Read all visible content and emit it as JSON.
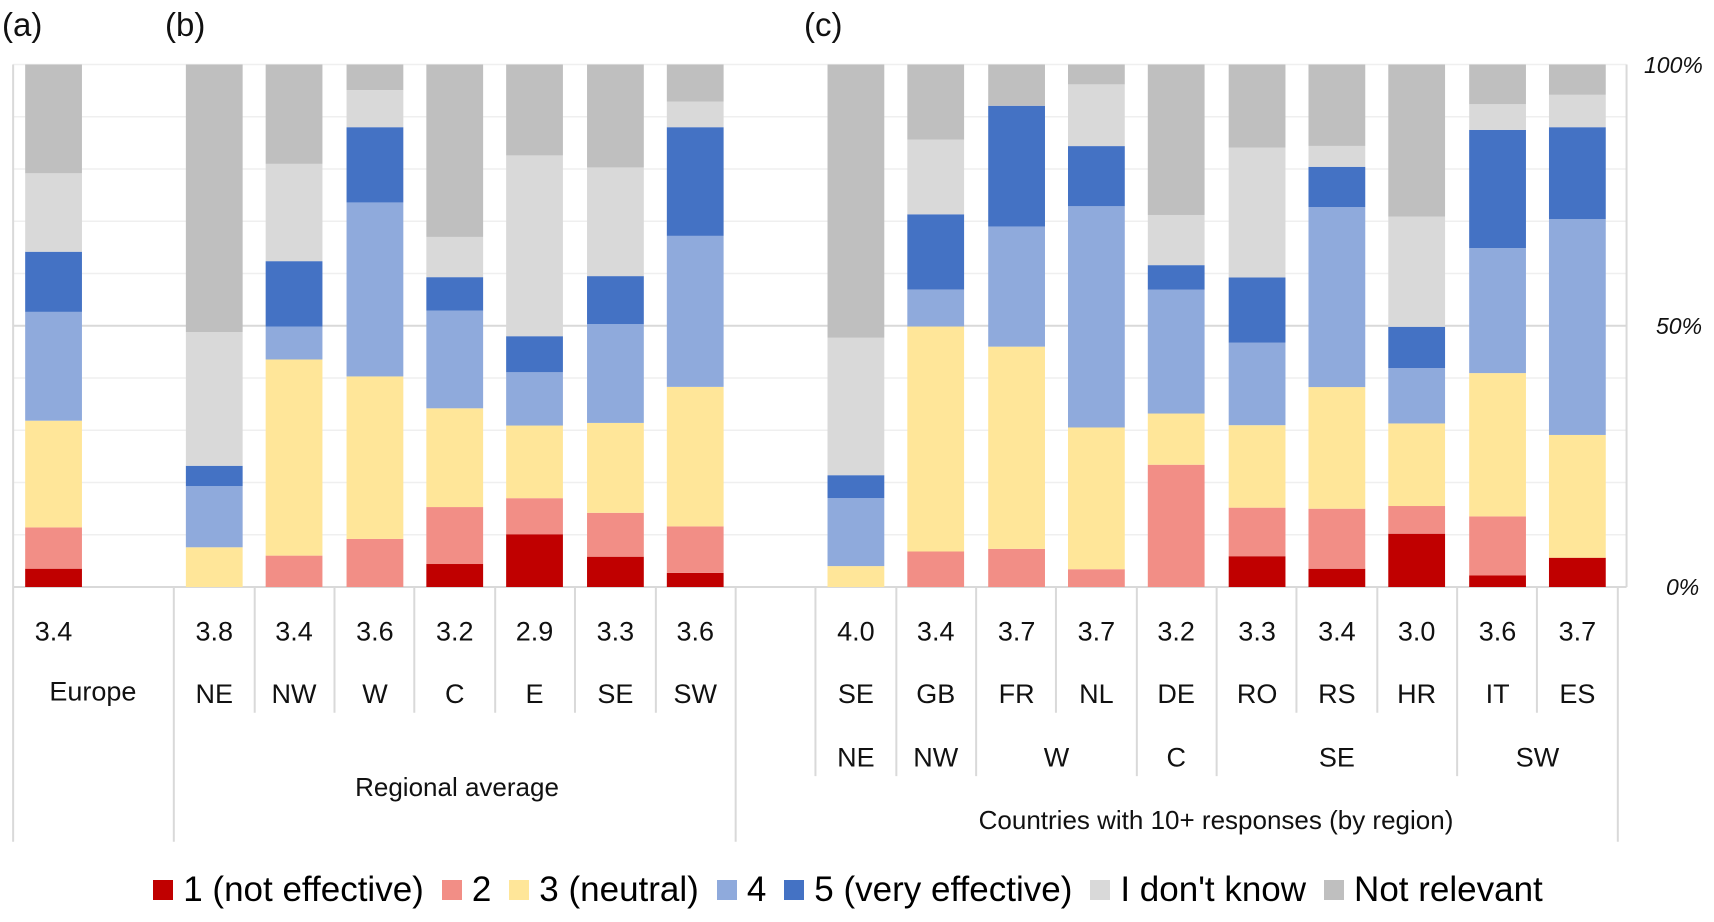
{
  "chart_data": {
    "type": "bar",
    "stacked": true,
    "percent_stacked": true,
    "title": "",
    "xlabel": "",
    "ylabel": "",
    "ylim": [
      0,
      100
    ],
    "y_ticks": [
      "0%",
      "50%",
      "100%"
    ],
    "y_axis_side": "right",
    "grid": true,
    "legend_position": "bottom",
    "panels": [
      {
        "label": "(a)",
        "group_label": "",
        "categories": [
          "Europe"
        ],
        "scores": [
          "3.4"
        ],
        "regions": []
      },
      {
        "label": "(b)",
        "group_label": "Regional average",
        "categories": [
          "NE",
          "NW",
          "W",
          "C",
          "E",
          "SE",
          "SW"
        ],
        "scores": [
          "3.8",
          "3.4",
          "3.6",
          "3.2",
          "2.9",
          "3.3",
          "3.6"
        ],
        "regions": []
      },
      {
        "label": "(c)",
        "group_label": "Countries with 10+ responses (by region)",
        "categories": [
          "SE",
          "GB",
          "FR",
          "NL",
          "DE",
          "RO",
          "RS",
          "HR",
          "IT",
          "ES"
        ],
        "scores": [
          "4.0",
          "3.4",
          "3.7",
          "3.7",
          "3.2",
          "3.3",
          "3.4",
          "3.0",
          "3.6",
          "3.7"
        ],
        "regions": [
          {
            "name": "NE",
            "span": 1
          },
          {
            "name": "NW",
            "span": 1
          },
          {
            "name": "W",
            "span": 2
          },
          {
            "name": "C",
            "span": 1
          },
          {
            "name": "SE",
            "span": 3
          },
          {
            "name": "SW",
            "span": 2
          }
        ]
      }
    ],
    "series": [
      {
        "name": "1 (not effective)",
        "color": "#C00000",
        "values": [
          3.5,
          0,
          0,
          0,
          4.4,
          10.1,
          5.8,
          2.7,
          0,
          0,
          0,
          0,
          0,
          5.9,
          3.5,
          10.2,
          2.2,
          5.6
        ]
      },
      {
        "name": "2",
        "color": "#F28E86",
        "values": [
          7.9,
          0,
          6.0,
          9.2,
          10.9,
          6.9,
          8.4,
          8.9,
          0,
          6.8,
          7.3,
          3.4,
          23.4,
          9.3,
          11.5,
          5.3,
          11.3,
          0
        ]
      },
      {
        "name": "3 (neutral)",
        "color": "#FFE699",
        "values": [
          20.4,
          7.6,
          37.5,
          31.1,
          18.9,
          13.9,
          17.2,
          26.7,
          4.0,
          43.1,
          38.7,
          27.1,
          9.8,
          15.8,
          23.3,
          15.8,
          27.4,
          23.5
        ]
      },
      {
        "name": "4",
        "color": "#8FAADC",
        "values": [
          20.8,
          11.7,
          6.3,
          33.3,
          18.7,
          10.2,
          18.9,
          28.9,
          13.0,
          7.1,
          23.0,
          42.3,
          23.7,
          15.8,
          34.5,
          10.6,
          23.9,
          41.3
        ]
      },
      {
        "name": "5 (very effective)",
        "color": "#4472C4",
        "values": [
          11.5,
          3.9,
          12.5,
          14.4,
          6.4,
          6.9,
          9.2,
          20.8,
          4.4,
          14.4,
          23.1,
          11.5,
          4.7,
          12.5,
          7.7,
          7.9,
          22.6,
          17.6
        ]
      },
      {
        "name": "I don't know",
        "color": "#D9D9D9",
        "values": [
          15.0,
          25.6,
          18.6,
          7.1,
          7.7,
          34.6,
          20.8,
          4.9,
          26.3,
          14.3,
          0,
          11.8,
          9.6,
          24.9,
          4.0,
          21.1,
          4.9,
          6.2
        ]
      },
      {
        "name": "Not relevant",
        "color": "#BFBFBF",
        "values": [
          20.8,
          51.2,
          19.0,
          4.9,
          33.0,
          17.4,
          19.7,
          7.1,
          52.3,
          14.4,
          7.9,
          3.8,
          28.8,
          15.9,
          15.6,
          29.1,
          7.6,
          5.8
        ]
      }
    ],
    "bar_order": [
      "Europe",
      "NE",
      "NW",
      "W",
      "C",
      "E",
      "SE",
      "SW",
      "SE",
      "GB",
      "FR",
      "NL",
      "DE",
      "RO",
      "RS",
      "HR",
      "IT",
      "ES"
    ]
  }
}
